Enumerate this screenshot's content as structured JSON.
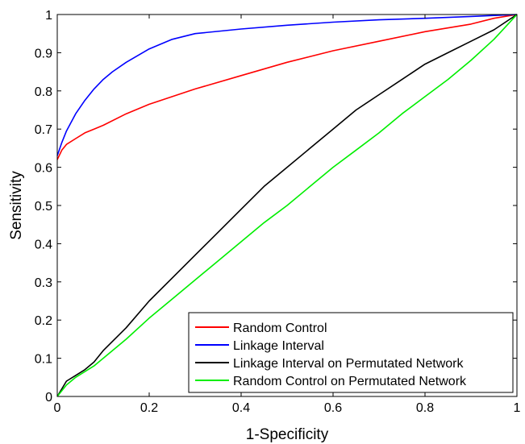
{
  "chart_data": {
    "type": "line",
    "title": "",
    "xlabel": "1-Specificity",
    "ylabel": "Sensitivity",
    "xlim": [
      0,
      1
    ],
    "ylim": [
      0,
      1
    ],
    "x_ticks": [
      "0",
      "0.2",
      "0.4",
      "0.6",
      "0.8",
      "1"
    ],
    "y_ticks": [
      "0",
      "0.1",
      "0.2",
      "0.3",
      "0.4",
      "0.5",
      "0.6",
      "0.7",
      "0.8",
      "0.9",
      "1"
    ],
    "grid": false,
    "legend_position": "bottom-right",
    "series": [
      {
        "name": "Random Control",
        "color": "#ff0000",
        "x": [
          0,
          0.01,
          0.02,
          0.04,
          0.06,
          0.08,
          0.1,
          0.15,
          0.2,
          0.25,
          0.3,
          0.4,
          0.5,
          0.6,
          0.7,
          0.8,
          0.9,
          0.95,
          1.0
        ],
        "y": [
          0.62,
          0.645,
          0.66,
          0.675,
          0.69,
          0.7,
          0.71,
          0.74,
          0.765,
          0.785,
          0.805,
          0.84,
          0.875,
          0.905,
          0.93,
          0.955,
          0.975,
          0.99,
          1.0
        ]
      },
      {
        "name": "Linkage Interval",
        "color": "#0000ff",
        "x": [
          0,
          0.01,
          0.02,
          0.04,
          0.06,
          0.08,
          0.1,
          0.12,
          0.15,
          0.2,
          0.25,
          0.3,
          0.4,
          0.5,
          0.6,
          0.7,
          0.8,
          0.9,
          1.0
        ],
        "y": [
          0.63,
          0.665,
          0.695,
          0.74,
          0.775,
          0.805,
          0.83,
          0.85,
          0.875,
          0.91,
          0.935,
          0.95,
          0.962,
          0.972,
          0.98,
          0.986,
          0.99,
          0.995,
          1.0
        ]
      },
      {
        "name": "Linkage Interval on Permutated Network",
        "color": "#000000",
        "x": [
          0,
          0.02,
          0.04,
          0.06,
          0.08,
          0.1,
          0.15,
          0.2,
          0.25,
          0.3,
          0.35,
          0.4,
          0.45,
          0.5,
          0.55,
          0.6,
          0.65,
          0.7,
          0.75,
          0.8,
          0.85,
          0.9,
          0.95,
          1.0
        ],
        "y": [
          0,
          0.04,
          0.055,
          0.07,
          0.09,
          0.12,
          0.18,
          0.25,
          0.31,
          0.37,
          0.43,
          0.49,
          0.55,
          0.6,
          0.65,
          0.7,
          0.75,
          0.79,
          0.83,
          0.87,
          0.9,
          0.93,
          0.96,
          1.0
        ]
      },
      {
        "name": "Random Control on Permutated Network",
        "color": "#00ee00",
        "x": [
          0,
          0.02,
          0.04,
          0.06,
          0.08,
          0.1,
          0.15,
          0.2,
          0.25,
          0.3,
          0.35,
          0.4,
          0.45,
          0.5,
          0.55,
          0.6,
          0.65,
          0.7,
          0.75,
          0.8,
          0.85,
          0.9,
          0.95,
          1.0
        ],
        "y": [
          0,
          0.03,
          0.05,
          0.065,
          0.08,
          0.1,
          0.15,
          0.205,
          0.255,
          0.305,
          0.355,
          0.405,
          0.455,
          0.5,
          0.55,
          0.6,
          0.645,
          0.69,
          0.74,
          0.785,
          0.83,
          0.88,
          0.935,
          1.0
        ]
      }
    ]
  }
}
